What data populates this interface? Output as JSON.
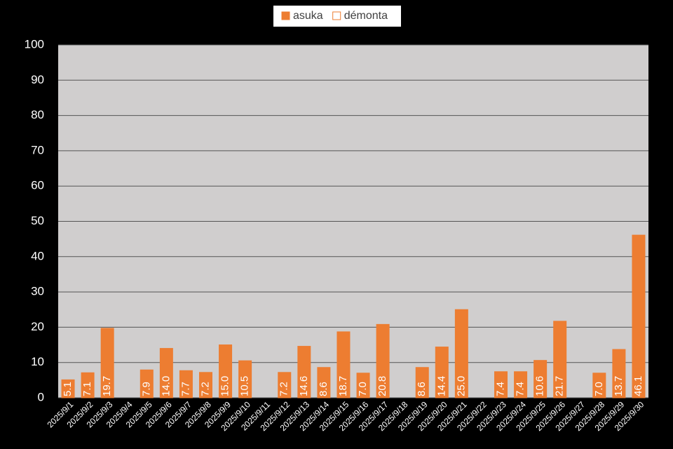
{
  "chart_data": {
    "type": "bar",
    "categories": [
      "2025/9/1",
      "2025/9/2",
      "2025/9/3",
      "2025/9/4",
      "2025/9/5",
      "2025/9/6",
      "2025/9/7",
      "2025/9/8",
      "2025/9/9",
      "2025/9/10",
      "2025/9/11",
      "2025/9/12",
      "2025/9/13",
      "2025/9/14",
      "2025/9/15",
      "2025/9/16",
      "2025/9/17",
      "2025/9/18",
      "2025/9/19",
      "2025/9/20",
      "2025/9/21",
      "2025/9/22",
      "2025/9/23",
      "2025/9/24",
      "2025/9/25",
      "2025/9/26",
      "2025/9/27",
      "2025/9/28",
      "2025/9/29",
      "2025/9/30"
    ],
    "series": [
      {
        "name": "asuka",
        "color": "#ed7d31",
        "edgecolor": "#ed7d31",
        "values": [
          5.1,
          7.1,
          19.7,
          null,
          7.9,
          14.0,
          7.7,
          7.2,
          15.0,
          10.5,
          null,
          7.2,
          14.6,
          8.6,
          18.7,
          7.0,
          20.8,
          null,
          8.6,
          14.4,
          25.0,
          null,
          7.4,
          7.4,
          10.6,
          21.7,
          null,
          7.0,
          13.7,
          46.1
        ],
        "value_labels": [
          "5.1",
          "7.1",
          "19.7",
          null,
          "7.9",
          "14.0",
          "7.7",
          "7.2",
          "15.0",
          "10.5",
          null,
          "7.2",
          "14.6",
          "8.6",
          "18.7",
          "7.0",
          "20.8",
          null,
          "8.6",
          "14.4",
          "25.0",
          null,
          "7.4",
          "7.4",
          "10.6",
          "21.7",
          null,
          "7.0",
          "13.7",
          "46.1"
        ]
      },
      {
        "name": "démonta",
        "color": "#ffffff",
        "edgecolor": "#ed7d31",
        "values": [
          null,
          null,
          null,
          null,
          null,
          null,
          null,
          null,
          null,
          null,
          null,
          null,
          null,
          null,
          null,
          null,
          null,
          null,
          null,
          null,
          null,
          null,
          null,
          null,
          null,
          null,
          null,
          null,
          null,
          null
        ]
      }
    ],
    "ylim": [
      0,
      100
    ],
    "yticks": [
      0,
      10,
      20,
      30,
      40,
      50,
      60,
      70,
      80,
      90,
      100
    ],
    "grid": true,
    "legend": "top"
  }
}
